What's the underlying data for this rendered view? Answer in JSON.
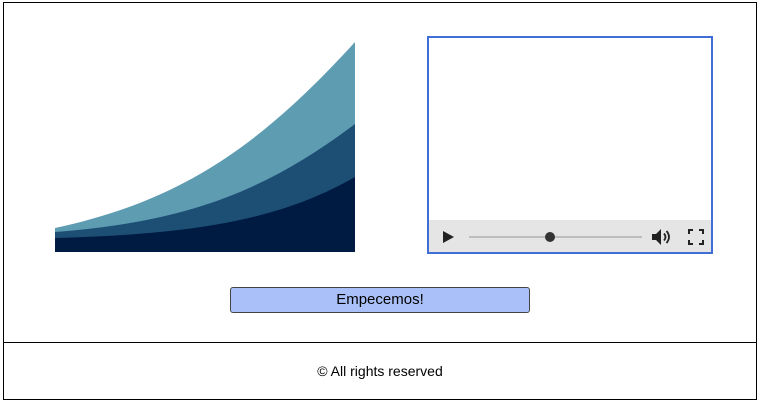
{
  "hero": {
    "icon": "stacked-area-illustration",
    "colors": {
      "top": "#5e9cb1",
      "middle": "#1d4f75",
      "bottom": "#001b42"
    }
  },
  "video": {
    "border_color": "#3f6fd6",
    "progress": 0.47,
    "icons": {
      "play": "play-icon",
      "volume": "volume-icon",
      "fullscreen": "fullscreen-icon"
    }
  },
  "cta": {
    "label": "Empecemos!",
    "color": "#a9c1f8"
  },
  "footer": {
    "text": "© All rights reserved"
  }
}
